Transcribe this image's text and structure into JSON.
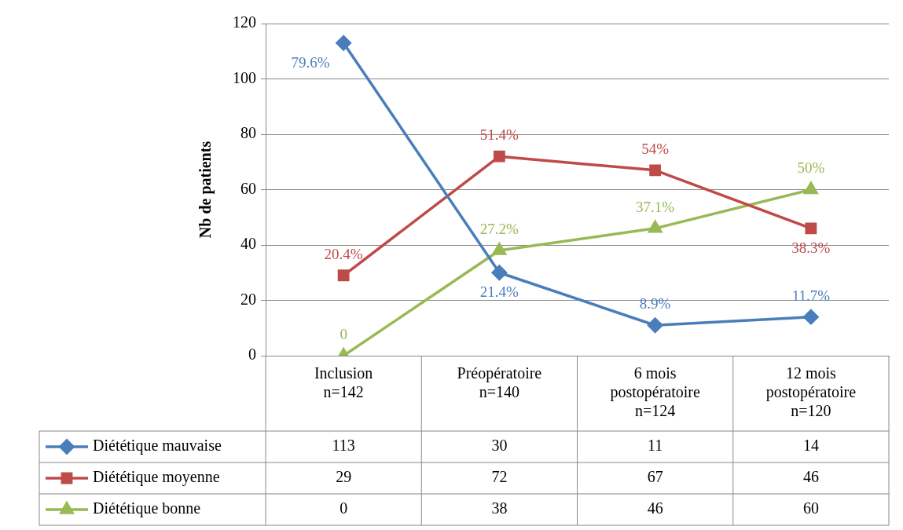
{
  "chart_data": {
    "type": "line",
    "ylabel": "Nb de patients",
    "categories": [
      "Inclusion\nn=142",
      "Préopératoire\nn=140",
      "6 mois\npostopératoire\nn=124",
      "12 mois\npostopératoire\nn=120"
    ],
    "series": [
      {
        "name": "Diététique mauvaise",
        "color": "#4a7ebb",
        "marker": "diamond",
        "values": [
          113,
          30,
          11,
          14
        ]
      },
      {
        "name": "Diététique moyenne",
        "color": "#be4b48",
        "marker": "square",
        "values": [
          29,
          72,
          67,
          46
        ]
      },
      {
        "name": "Diététique bonne",
        "color": "#98b954",
        "marker": "triangle",
        "values": [
          0,
          38,
          46,
          60
        ]
      }
    ],
    "annotations": [
      {
        "text": "79.6%",
        "x": "Inclusion\nn=142",
        "y": 113
      },
      {
        "text": "21.4%",
        "x": "Préopératoire\nn=140",
        "y": 30
      },
      {
        "text": "8.9%",
        "x": "6 mois\npostopératoire\nn=124",
        "y": 11
      },
      {
        "text": "11.7%",
        "x": "12 mois\npostopératoire\nn=120",
        "y": 14
      },
      {
        "text": "20.4%",
        "x": "Inclusion\nn=142",
        "y": 29
      },
      {
        "text": "51.4%",
        "x": "Préopératoire\nn=140",
        "y": 72
      },
      {
        "text": "54%",
        "x": "6 mois\npostopératoire\nn=124",
        "y": 67
      },
      {
        "text": "38.3%",
        "x": "12 mois\npostopératoire\nn=120",
        "y": 46
      },
      {
        "text": "0",
        "x": "Inclusion\nn=142",
        "y": 0
      },
      {
        "text": "27.2%",
        "x": "Préopératoire\nn=140",
        "y": 38
      },
      {
        "text": "37.1%",
        "x": "6 mois\npostopératoire\nn=124",
        "y": 46
      },
      {
        "text": "50%",
        "x": "12 mois\npostopératoire\nn=120",
        "y": 60
      }
    ],
    "ylim": [
      0,
      120
    ],
    "yticks": [
      0,
      20,
      40,
      60,
      80,
      100,
      120
    ],
    "grid": "y",
    "legend": "bottom",
    "data_labels": true
  }
}
